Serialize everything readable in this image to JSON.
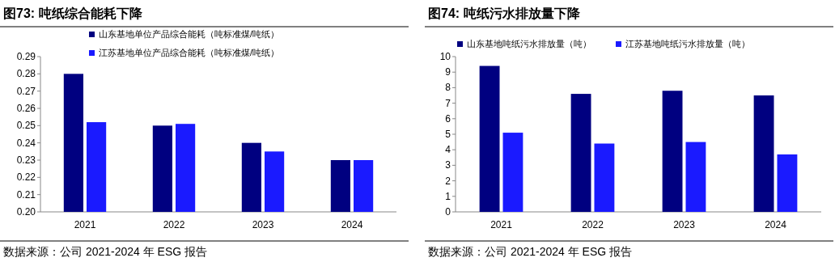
{
  "chart_data": [
    {
      "type": "bar",
      "title": "图73:  吨纸综合能耗下降",
      "annotations": [
        "数据来源：公司 2021-2024 年 ESG 报告"
      ],
      "categories": [
        "2021",
        "2022",
        "2023",
        "2024"
      ],
      "series": [
        {
          "name": "山东基地单位产品综合能耗（吨标准煤/吨纸）",
          "color": "#000080",
          "values": [
            0.28,
            0.25,
            0.24,
            0.23
          ]
        },
        {
          "name": "江苏基地单位产品综合能耗（吨标准煤/吨纸）",
          "color": "#1a1aff",
          "values": [
            0.252,
            0.251,
            0.235,
            0.23
          ]
        }
      ],
      "ylim": [
        0.2,
        0.29
      ],
      "yticks": [
        {
          "value": 0.2,
          "label": "0.20"
        },
        {
          "value": 0.21,
          "label": "0.21"
        },
        {
          "value": 0.22,
          "label": "0.22"
        },
        {
          "value": 0.23,
          "label": "0.23"
        },
        {
          "value": 0.24,
          "label": "0.24"
        },
        {
          "value": 0.25,
          "label": "0.25"
        },
        {
          "value": 0.26,
          "label": "0.26"
        },
        {
          "value": 0.27,
          "label": "0.27"
        },
        {
          "value": 0.28,
          "label": "0.28"
        },
        {
          "value": 0.29,
          "label": "0.29"
        }
      ],
      "grid": false,
      "legend": "top left"
    },
    {
      "type": "bar",
      "title": "图74:  吨纸污水排放量下降",
      "annotations": [
        "数据来源：公司 2021-2024 年 ESG 报告"
      ],
      "categories": [
        "2021",
        "2022",
        "2023",
        "2024"
      ],
      "series": [
        {
          "name": "山东基地吨纸污水排放量（吨）",
          "color": "#000080",
          "values": [
            9.4,
            7.6,
            7.8,
            7.5
          ]
        },
        {
          "name": "江苏基地吨纸污水排放量（吨）",
          "color": "#1a1aff",
          "values": [
            5.1,
            4.4,
            4.5,
            3.7
          ]
        }
      ],
      "ylim": [
        0,
        10
      ],
      "yticks": [
        0,
        1,
        2,
        3,
        4,
        5,
        6,
        7,
        8,
        9,
        10
      ],
      "grid": false,
      "legend": "top"
    }
  ]
}
